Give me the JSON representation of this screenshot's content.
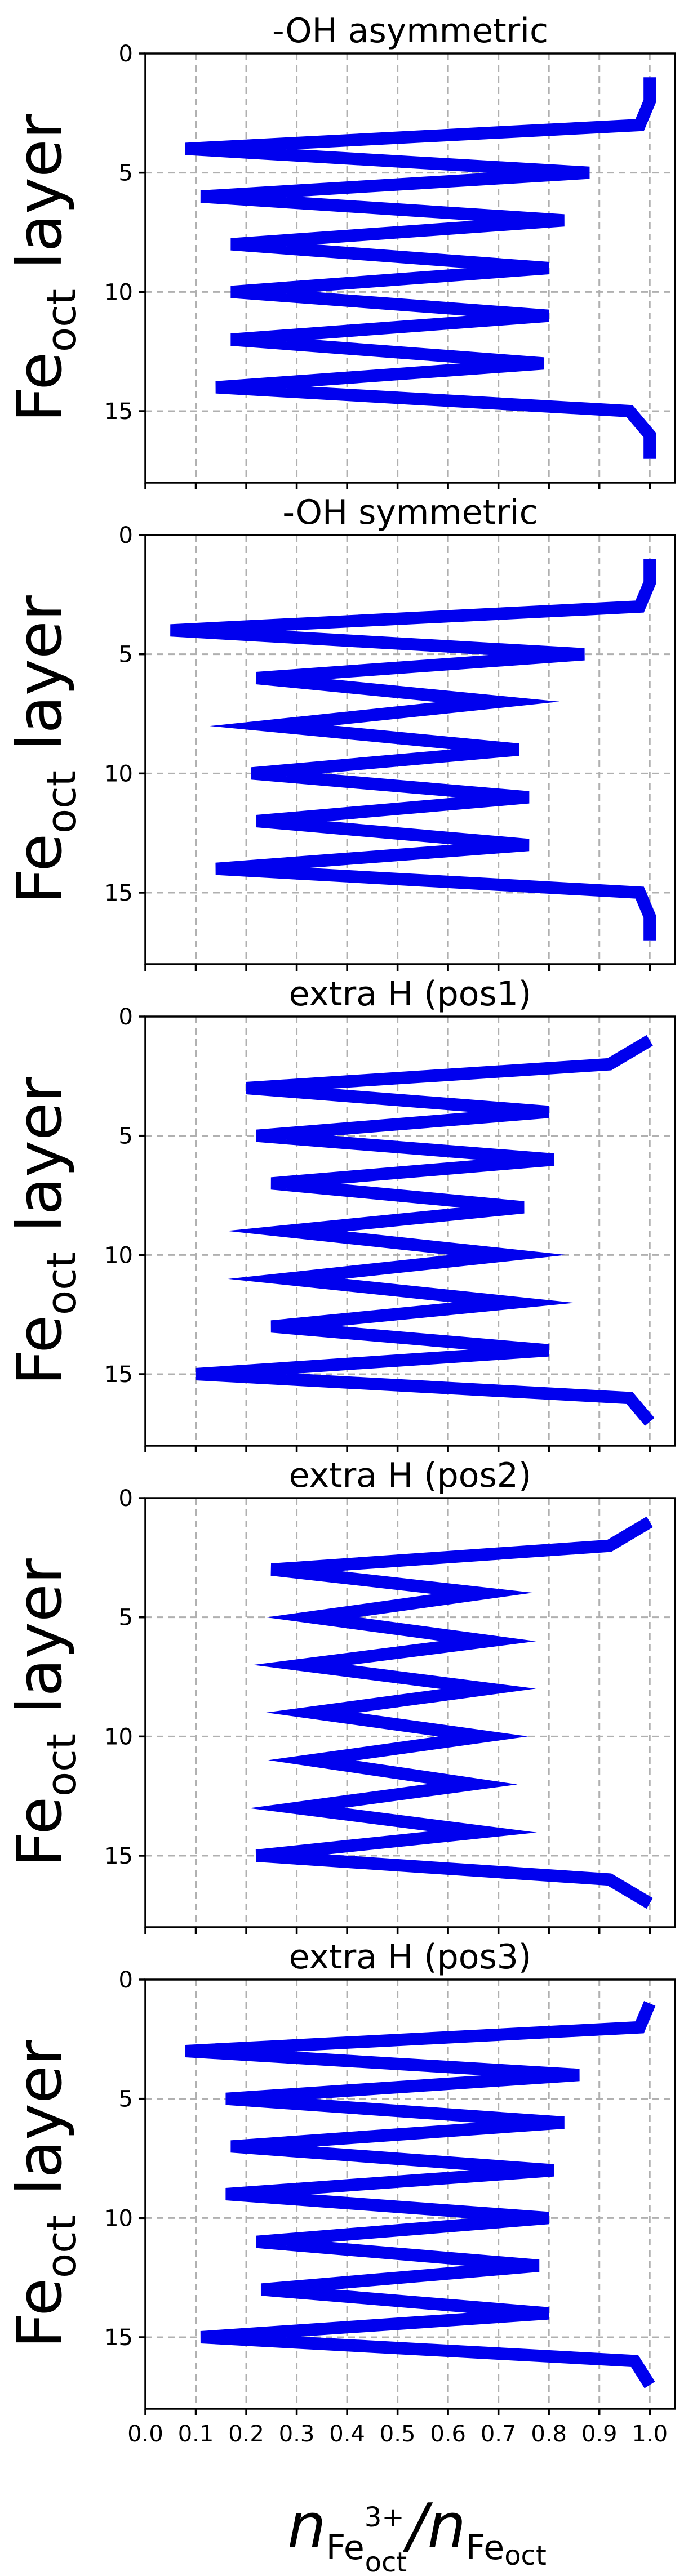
{
  "styles": {
    "line_color": "#0000ee",
    "grid_color": "#b0b0b0"
  },
  "axes": {
    "xlabel": {
      "n1": "n",
      "sub1_base": "Fe",
      "sub1_sup": "3+",
      "sub1_sub": "oct",
      "slash": "/",
      "n2": "n",
      "sub2_base": "Fe",
      "sub2_sub": "oct"
    },
    "ylabel": {
      "base": "Fe",
      "sub": "oct",
      "rest": " layer"
    }
  },
  "chart_data": [
    {
      "type": "line",
      "title": "-OH asymmetric",
      "xlim": [
        0.0,
        1.05
      ],
      "ylim": [
        18,
        0
      ],
      "y_inverted": true,
      "grid": true,
      "xticks": [
        0.0,
        0.1,
        0.2,
        0.3,
        0.4,
        0.5,
        0.6,
        0.7,
        0.8,
        0.9,
        1.0
      ],
      "yticks": [
        0,
        5,
        10,
        15
      ],
      "x": [
        1.0,
        1.0,
        0.98,
        0.08,
        0.88,
        0.11,
        0.83,
        0.17,
        0.8,
        0.17,
        0.8,
        0.17,
        0.79,
        0.14,
        0.96,
        1.0,
        1.0
      ],
      "y": [
        1,
        2,
        3,
        4,
        5,
        6,
        7,
        8,
        9,
        10,
        11,
        12,
        13,
        14,
        15,
        16,
        17
      ]
    },
    {
      "type": "line",
      "title": "-OH symmetric",
      "xlim": [
        0.0,
        1.05
      ],
      "ylim": [
        18,
        0
      ],
      "y_inverted": true,
      "grid": true,
      "xticks": [
        0.0,
        0.1,
        0.2,
        0.3,
        0.4,
        0.5,
        0.6,
        0.7,
        0.8,
        0.9,
        1.0
      ],
      "yticks": [
        0,
        5,
        10,
        15
      ],
      "x": [
        1.0,
        1.0,
        0.98,
        0.05,
        0.87,
        0.22,
        0.7,
        0.25,
        0.74,
        0.21,
        0.76,
        0.22,
        0.76,
        0.14,
        0.98,
        1.0,
        1.0
      ],
      "y": [
        1,
        2,
        3,
        4,
        5,
        6,
        7,
        8,
        9,
        10,
        11,
        12,
        13,
        14,
        15,
        16,
        17
      ]
    },
    {
      "type": "line",
      "title": "extra H (pos1)",
      "xlim": [
        0.0,
        1.05
      ],
      "ylim": [
        18,
        0
      ],
      "y_inverted": true,
      "grid": true,
      "xticks": [
        0.0,
        0.1,
        0.2,
        0.3,
        0.4,
        0.5,
        0.6,
        0.7,
        0.8,
        0.9,
        1.0
      ],
      "yticks": [
        0,
        5,
        10,
        15
      ],
      "x": [
        1.0,
        0.92,
        0.2,
        0.8,
        0.22,
        0.81,
        0.25,
        0.75,
        0.28,
        0.72,
        0.28,
        0.73,
        0.25,
        0.8,
        0.1,
        0.96,
        1.0
      ],
      "y": [
        1,
        2,
        3,
        4,
        5,
        6,
        7,
        8,
        9,
        10,
        11,
        12,
        13,
        14,
        15,
        16,
        17
      ]
    },
    {
      "type": "line",
      "title": "extra H (pos2)",
      "xlim": [
        0.0,
        1.05
      ],
      "ylim": [
        18,
        0
      ],
      "y_inverted": true,
      "grid": true,
      "xticks": [
        0.0,
        0.1,
        0.2,
        0.3,
        0.4,
        0.5,
        0.6,
        0.7,
        0.8,
        0.9,
        1.0
      ],
      "yticks": [
        0,
        5,
        10,
        15
      ],
      "x": [
        1.0,
        0.92,
        0.25,
        0.67,
        0.33,
        0.68,
        0.31,
        0.68,
        0.33,
        0.67,
        0.33,
        0.65,
        0.3,
        0.67,
        0.22,
        0.92,
        1.0
      ],
      "y": [
        1,
        2,
        3,
        4,
        5,
        6,
        7,
        8,
        9,
        10,
        11,
        12,
        13,
        14,
        15,
        16,
        17
      ]
    },
    {
      "type": "line",
      "title": "extra H (pos3)",
      "xlim": [
        0.0,
        1.05
      ],
      "ylim": [
        18,
        0
      ],
      "y_inverted": true,
      "grid": true,
      "xticks": [
        0.0,
        0.1,
        0.2,
        0.3,
        0.4,
        0.5,
        0.6,
        0.7,
        0.8,
        0.9,
        1.0
      ],
      "yticks": [
        0,
        5,
        10,
        15
      ],
      "xticklabels_shown": true,
      "x": [
        1.0,
        0.98,
        0.08,
        0.86,
        0.16,
        0.83,
        0.17,
        0.81,
        0.16,
        0.8,
        0.22,
        0.78,
        0.23,
        0.8,
        0.11,
        0.97,
        1.0
      ],
      "y": [
        1,
        2,
        3,
        4,
        5,
        6,
        7,
        8,
        9,
        10,
        11,
        12,
        13,
        14,
        15,
        16,
        17
      ]
    }
  ]
}
